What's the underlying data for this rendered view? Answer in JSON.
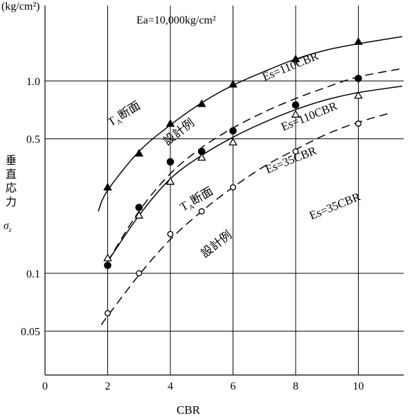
{
  "chart_data": {
    "type": "line",
    "title": "",
    "unit_label": "(kg/cm²)",
    "xlabel": "CBR",
    "ylabel": [
      "垂",
      "直",
      "応",
      "力"
    ],
    "ylabel_symbol": "σ",
    "ylabel_subscript": "z",
    "note": "Ea=10,000kg/cm²",
    "y_scale": "log",
    "xlim": [
      0,
      11.8
    ],
    "ylim": [
      0.035,
      1.9
    ],
    "x_ticks": [
      0,
      2,
      4,
      6,
      8,
      10
    ],
    "x_tick_labels": [
      "0",
      "2",
      "4",
      "6",
      "8",
      "10"
    ],
    "y_ticks": [
      0.05,
      0.1,
      0.5,
      1.0
    ],
    "y_tick_labels": [
      "0.05",
      "0.1",
      "0.5",
      "1.0"
    ],
    "grid": true,
    "series": [
      {
        "group": "A",
        "marker": "filled-triangle",
        "line": "solid",
        "points": [
          [
            2,
            0.28
          ],
          [
            3,
            0.42
          ],
          [
            4,
            0.6
          ],
          [
            5,
            0.76
          ],
          [
            6,
            0.96
          ],
          [
            8,
            1.3
          ],
          [
            10,
            1.6
          ]
        ],
        "curve": [
          [
            1.7,
            0.21
          ],
          [
            2,
            0.27
          ],
          [
            3,
            0.43
          ],
          [
            4,
            0.59
          ],
          [
            5,
            0.77
          ],
          [
            6,
            0.95
          ],
          [
            7,
            1.12
          ],
          [
            8,
            1.3
          ],
          [
            9,
            1.45
          ],
          [
            10,
            1.56
          ],
          [
            11.4,
            1.7
          ]
        ]
      },
      {
        "group": "B",
        "marker": "filled-circle",
        "line": "dashed",
        "points": [
          [
            2,
            0.11
          ],
          [
            3,
            0.22
          ],
          [
            4,
            0.38
          ],
          [
            5,
            0.43
          ],
          [
            6,
            0.55
          ],
          [
            8,
            0.75
          ],
          [
            10,
            1.03
          ]
        ],
        "curve": [
          [
            2,
            0.115
          ],
          [
            3,
            0.21
          ],
          [
            4,
            0.33
          ],
          [
            5,
            0.45
          ],
          [
            6,
            0.57
          ],
          [
            7,
            0.69
          ],
          [
            8,
            0.81
          ],
          [
            9,
            0.93
          ],
          [
            10,
            1.05
          ],
          [
            11.4,
            1.16
          ]
        ]
      },
      {
        "group": "C",
        "marker": "open-triangle",
        "line": "solid",
        "points": [
          [
            2,
            0.12
          ],
          [
            3,
            0.2
          ],
          [
            4,
            0.3
          ],
          [
            5,
            0.4
          ],
          [
            6,
            0.48
          ],
          [
            8,
            0.67
          ],
          [
            10,
            0.84
          ]
        ],
        "curve": [
          [
            2,
            0.115
          ],
          [
            3,
            0.2
          ],
          [
            4,
            0.31
          ],
          [
            5,
            0.41
          ],
          [
            6,
            0.51
          ],
          [
            7,
            0.61
          ],
          [
            8,
            0.71
          ],
          [
            9,
            0.8
          ],
          [
            10,
            0.87
          ],
          [
            11.4,
            0.94
          ]
        ]
      },
      {
        "group": "D",
        "marker": "open-circle",
        "line": "dashed",
        "points": [
          [
            2,
            0.062
          ],
          [
            3,
            0.1
          ],
          [
            4,
            0.16
          ],
          [
            5,
            0.21
          ],
          [
            6,
            0.28
          ],
          [
            8,
            0.43
          ],
          [
            10,
            0.6
          ]
        ],
        "curve": [
          [
            1.8,
            0.054
          ],
          [
            2,
            0.06
          ],
          [
            3,
            0.098
          ],
          [
            4,
            0.15
          ],
          [
            5,
            0.21
          ],
          [
            6,
            0.28
          ],
          [
            7,
            0.36
          ],
          [
            8,
            0.44
          ],
          [
            9,
            0.53
          ],
          [
            10,
            0.61
          ],
          [
            11,
            0.68
          ]
        ]
      }
    ],
    "annotations": [
      {
        "text": "Es=110CBR",
        "x": 7.0,
        "y": 1.0,
        "rotate": -22
      },
      {
        "text": "Es=110CBR",
        "x": 7.6,
        "y": 0.55,
        "rotate": -22
      },
      {
        "text": "Es=35CBR",
        "x": 7.1,
        "y": 0.33,
        "rotate": -22
      },
      {
        "text": "Es=35CBR",
        "x": 8.5,
        "y": 0.19,
        "rotate": -22
      },
      {
        "text": "断面",
        "prefix": "T",
        "sub": "A",
        "x": 2.1,
        "y": 0.58,
        "rotate": -32
      },
      {
        "text": "断面",
        "prefix": "T",
        "sub": "A",
        "x": 4.4,
        "y": 0.21,
        "rotate": -30
      },
      {
        "text": "設計例",
        "x": 3.9,
        "y": 0.46,
        "rotate": -38
      },
      {
        "text": "設計例",
        "x": 5.1,
        "y": 0.12,
        "rotate": -38
      }
    ]
  }
}
